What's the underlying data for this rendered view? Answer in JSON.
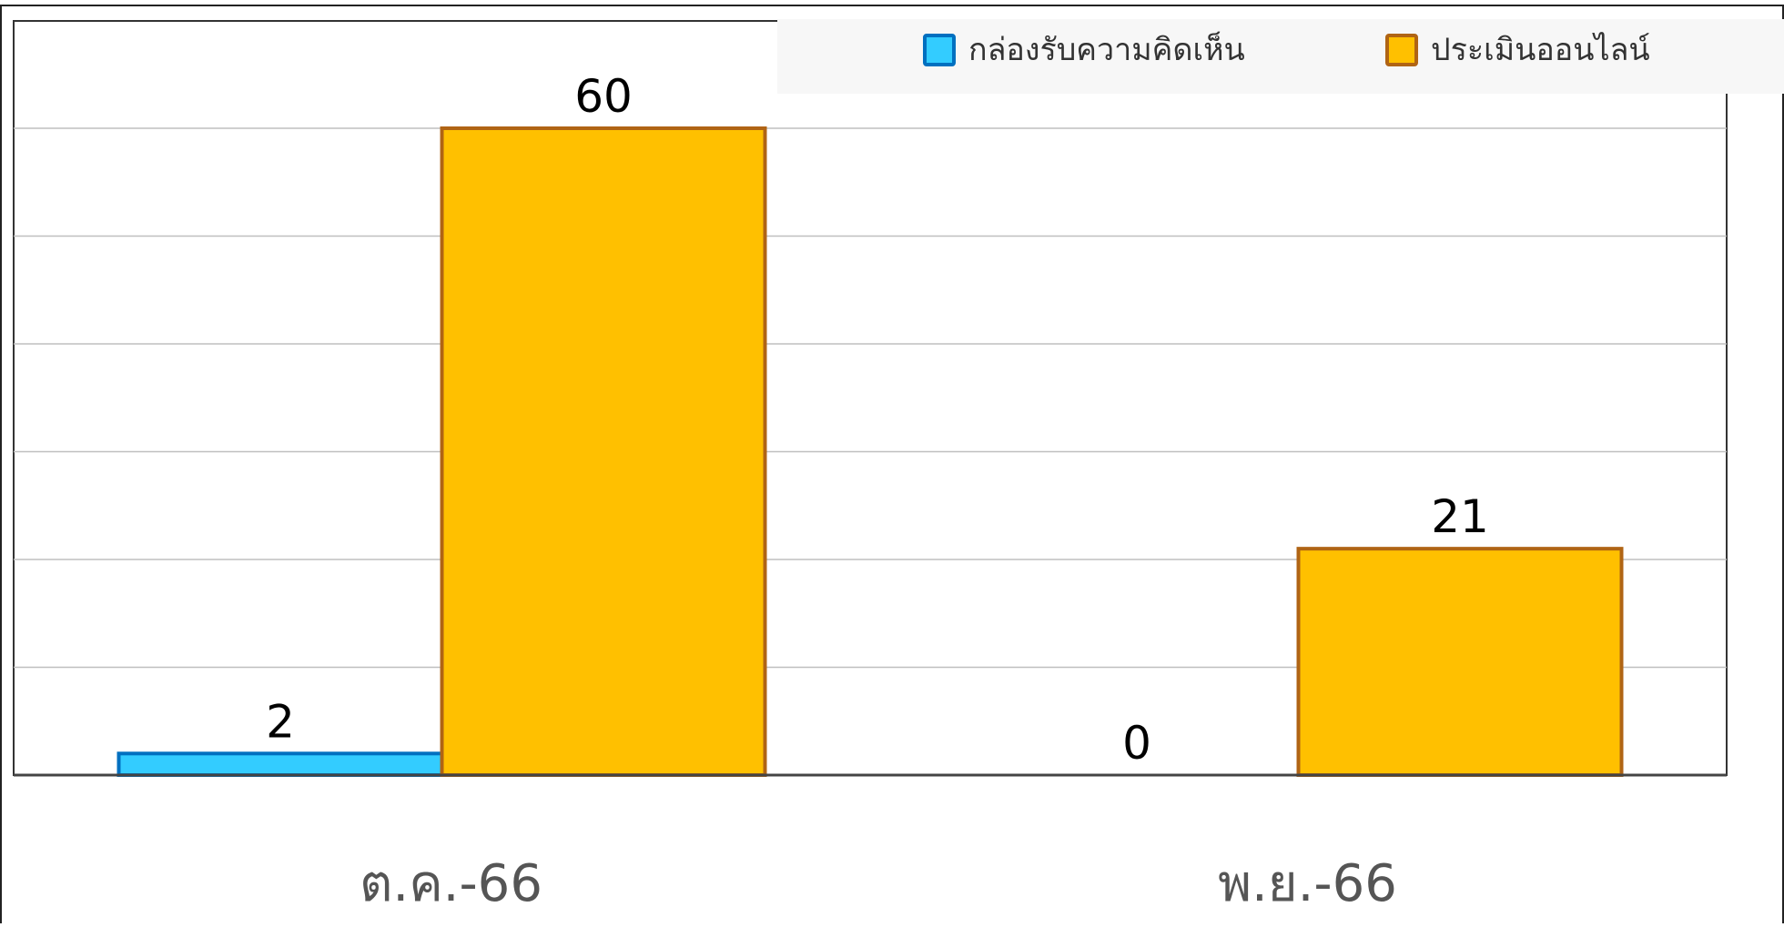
{
  "chart_data": {
    "type": "bar",
    "categories": [
      "ต.ค.-66",
      "พ.ย.-66"
    ],
    "series": [
      {
        "name": "กล่องรับความคิดเห็น",
        "values": [
          2,
          0
        ],
        "fill": "#33ccff",
        "stroke": "#0070c0"
      },
      {
        "name": "ประเมินออนไลน์",
        "values": [
          60,
          21
        ],
        "fill": "#ffc000",
        "stroke": "#b06414"
      }
    ],
    "data_labels": true,
    "ylim": [
      0,
      70
    ],
    "y_tick_step": 10,
    "grid": true,
    "legend_position": "top-right",
    "title": "",
    "xlabel": "",
    "ylabel": ""
  }
}
